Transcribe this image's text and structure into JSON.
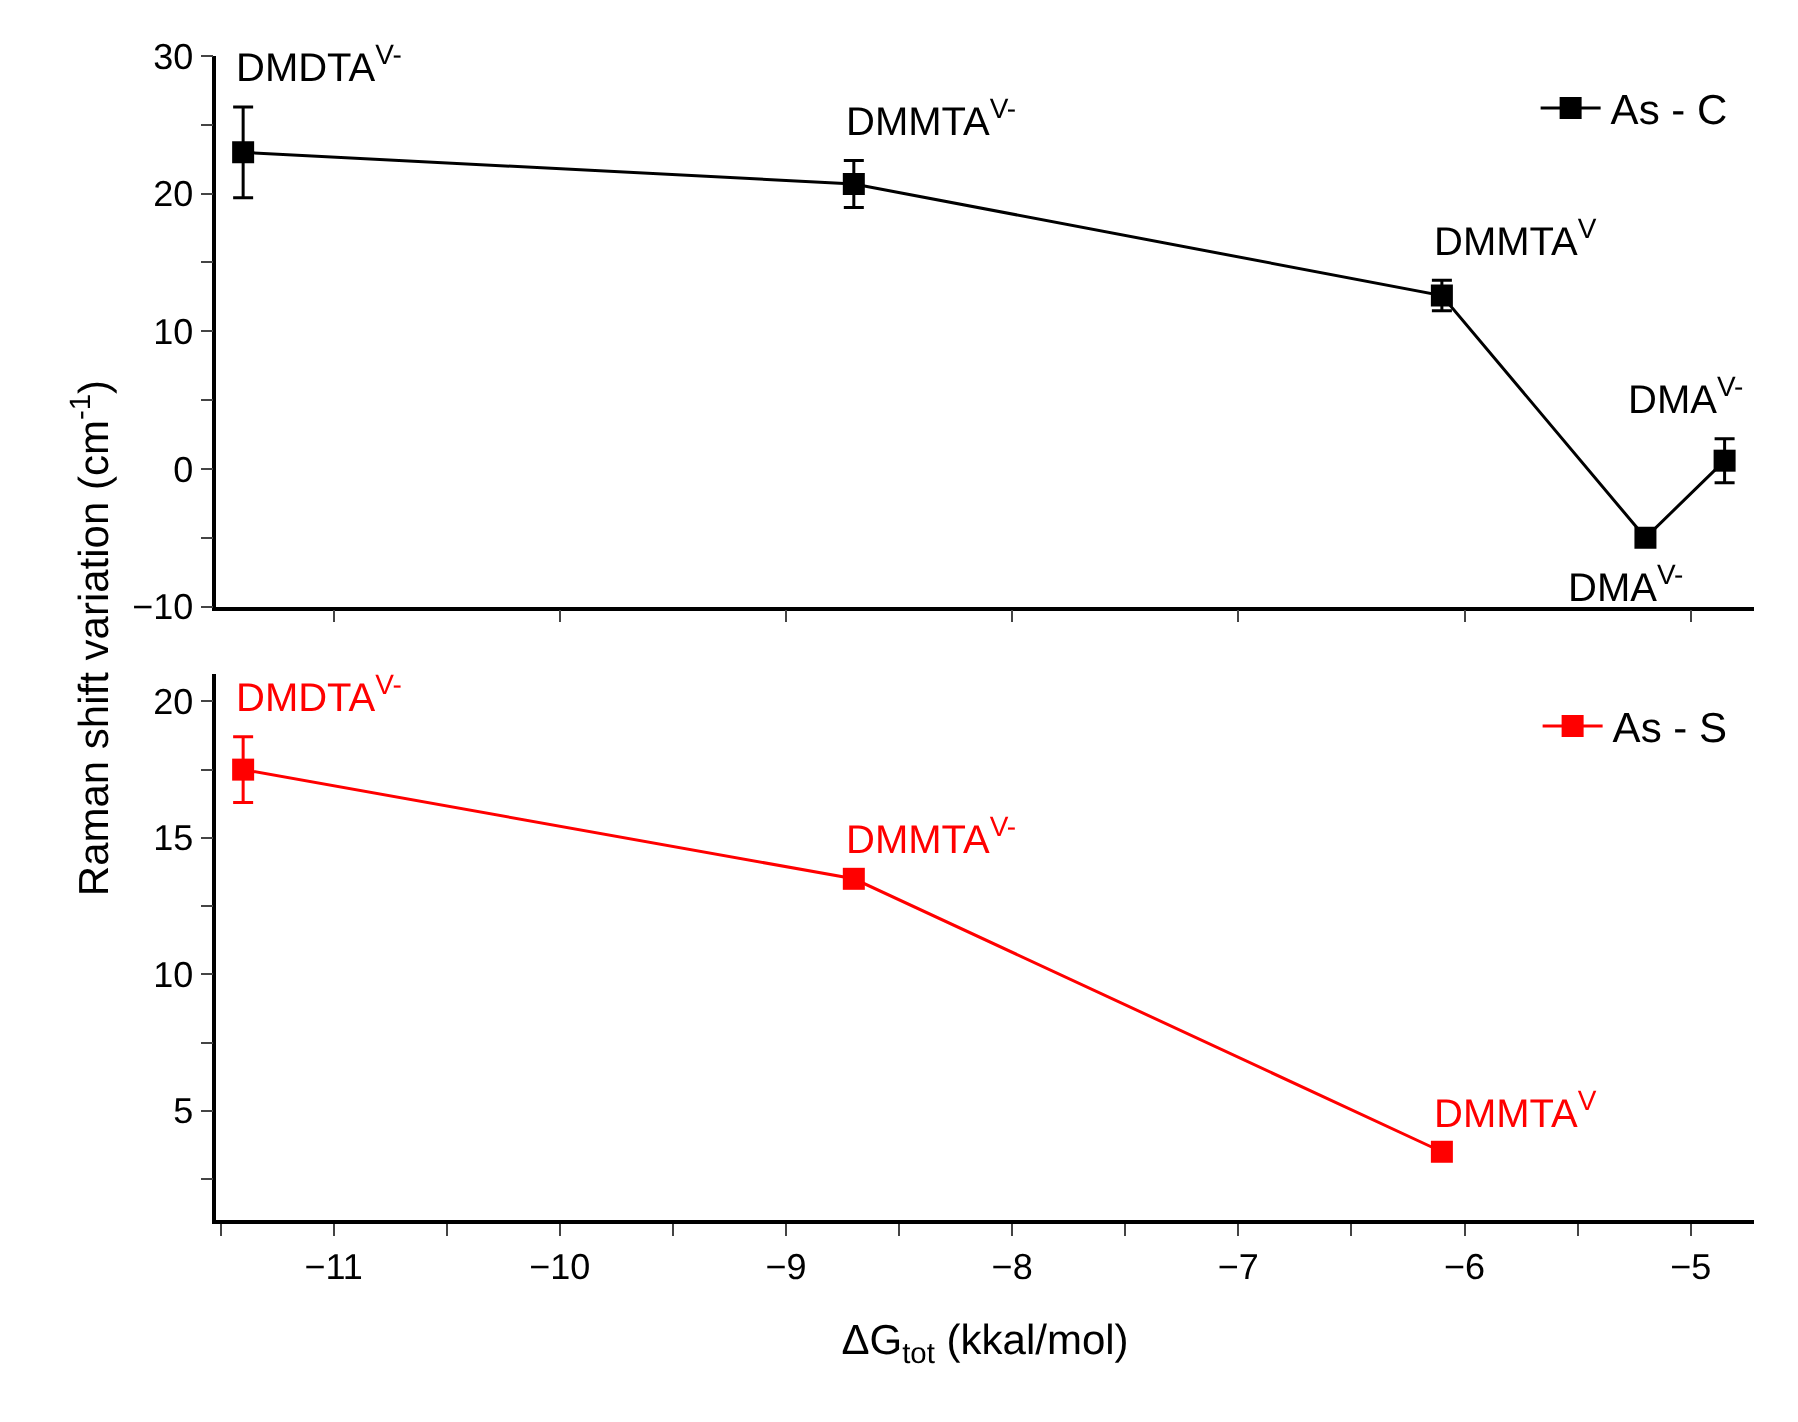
{
  "chart_data": [
    {
      "type": "line",
      "ylabel": "Raman shift variation (cm$^{-1}$)",
      "x": [
        -11.4,
        -8.7,
        -6.1,
        -5.2,
        -4.85
      ],
      "series": [
        {
          "name": "As - C",
          "color": "#000000",
          "values": [
            23,
            20.7,
            12.6,
            -5,
            0.6
          ],
          "errors": [
            3.3,
            1.7,
            1.1,
            null,
            1.6
          ]
        }
      ],
      "annotations": [
        {
          "text": "DMDTA$^{V-}$",
          "x": -11.4,
          "y": 23
        },
        {
          "text": "DMMTA$^{V-}$",
          "x": -8.7,
          "y": 20.7
        },
        {
          "text": "DMMTA$^{V}$",
          "x": -6.1,
          "y": 12.6
        },
        {
          "text": "DMA$^{V-}$",
          "x": -5.2,
          "y": -5
        },
        {
          "text": "DMA$^{V-}$",
          "x": -4.85,
          "y": 0.6
        }
      ],
      "xlim": [
        -11.52,
        -4.72
      ],
      "ylim": [
        -10,
        30
      ],
      "xticks": [
        -11,
        -10,
        -9,
        -8,
        -7,
        -6,
        -5
      ],
      "yticks": [
        -10,
        {
          "value": -5,
          "label": null
        },
        0,
        {
          "value": 5,
          "label": null
        },
        10,
        {
          "value": 15,
          "label": null
        },
        20,
        {
          "value": 25,
          "label": null
        },
        30
      ],
      "tick_labels": "y",
      "legend": "top right",
      "marker": "square",
      "line_style": "solid"
    },
    {
      "type": "line",
      "xlabel": "ΔG$_{tot}$ (kkal/mol)",
      "x": [
        -11.4,
        -8.7,
        -6.1
      ],
      "series": [
        {
          "name": "As - S",
          "color": "#ff0000",
          "values": [
            17.5,
            13.5,
            3.5
          ],
          "errors": [
            1.2,
            null,
            null
          ]
        }
      ],
      "annotations": [
        {
          "text": "DMDTA$^{V-}$",
          "x": -11.4,
          "y": 17.5
        },
        {
          "text": "DMMTA$^{V-}$",
          "x": -8.7,
          "y": 13.5
        },
        {
          "text": "DMMTA$^{V}$",
          "x": -6.1,
          "y": 3.5
        }
      ],
      "xlim": [
        -11.52,
        -4.72
      ],
      "ylim": [
        1,
        21
      ],
      "xticks": [
        {
          "value": -11.5,
          "label": null
        },
        -11,
        {
          "value": -10.5,
          "label": null
        },
        -10,
        {
          "value": -9.5,
          "label": null
        },
        -9,
        {
          "value": -8.5,
          "label": null
        },
        -8,
        {
          "value": -7.5,
          "label": null
        },
        -7,
        {
          "value": -6.5,
          "label": null
        },
        -6,
        {
          "value": -5.5,
          "label": null
        },
        -5
      ],
      "yticks": [
        {
          "value": 2.5,
          "label": null
        },
        5,
        {
          "value": 7.5,
          "label": null
        },
        10,
        {
          "value": 12.5,
          "label": null
        },
        15,
        {
          "value": 17.5,
          "label": null
        },
        20
      ],
      "legend": "top right",
      "marker": "square",
      "line_style": "solid"
    }
  ]
}
